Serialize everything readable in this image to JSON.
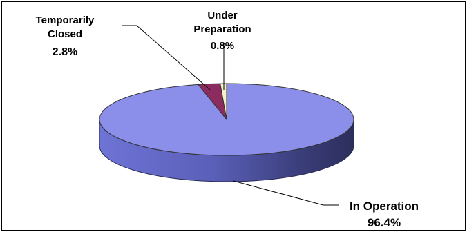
{
  "chart_data": {
    "type": "pie",
    "style": "3d",
    "slices": [
      {
        "name": "In Operation",
        "value": 96.4,
        "label_lines": [
          "In Operation"
        ],
        "value_label": "96.4%",
        "color": "#8B8FE9"
      },
      {
        "name": "Temporarily Closed",
        "value": 2.8,
        "label_lines": [
          "Temporarily",
          "Closed"
        ],
        "value_label": "2.8%",
        "color": "#8B2B5E"
      },
      {
        "name": "Under Preparation",
        "value": 0.8,
        "label_lines": [
          "Under",
          "Preparation"
        ],
        "value_label": "0.8%",
        "color": "#F5F0C8"
      }
    ],
    "legend": "none",
    "data_labels": "outside with leader lines"
  }
}
